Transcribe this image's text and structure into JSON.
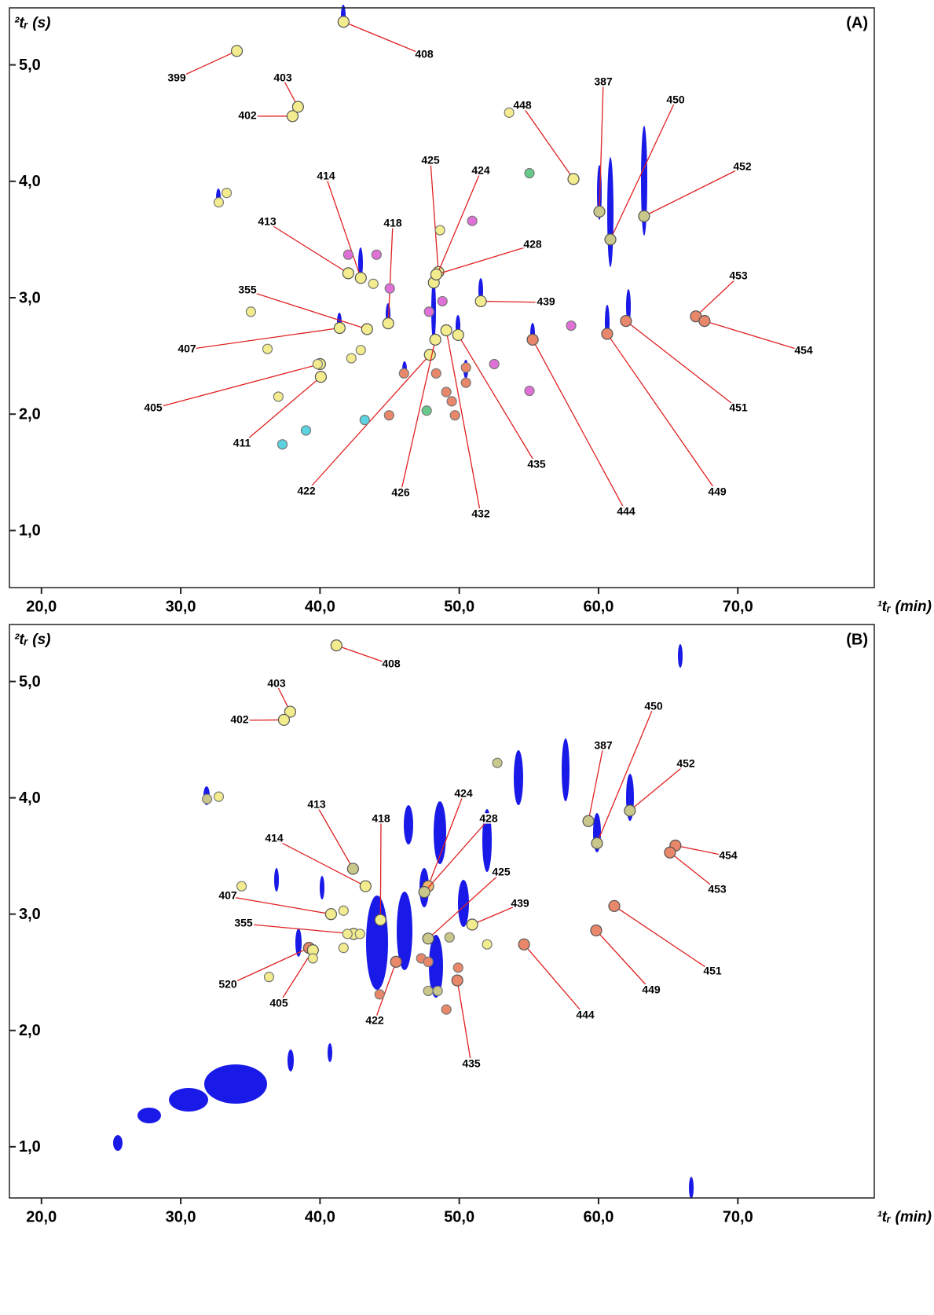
{
  "chart_data": [
    {
      "type": "scatter",
      "panel_label": "(A)",
      "x_label": "¹tᵣ (min)",
      "y_label": "²tᵣ (s)",
      "xlim": [
        17.7,
        79.8
      ],
      "ylim": [
        0.51,
        5.49
      ],
      "xticks": [
        {
          "value": 20,
          "label": "20,0"
        },
        {
          "value": 30,
          "label": "30,0"
        },
        {
          "value": 40,
          "label": "40,0"
        },
        {
          "value": 50,
          "label": "50,0"
        },
        {
          "value": 60,
          "label": "60,0"
        },
        {
          "value": 70,
          "label": "70,0"
        }
      ],
      "yticks": [
        {
          "value": 1,
          "label": "1,0"
        },
        {
          "value": 2,
          "label": "2,0"
        },
        {
          "value": 3,
          "label": "3,0"
        },
        {
          "value": 4,
          "label": "4,0"
        },
        {
          "value": 5,
          "label": "5,0"
        }
      ],
      "labels": [
        "408",
        "399",
        "403",
        "402",
        "448",
        "387",
        "450",
        "452",
        "414",
        "425",
        "424",
        "428",
        "413",
        "418",
        "355",
        "407",
        "439",
        "405",
        "411",
        "422",
        "426",
        "432",
        "435",
        "444",
        "449",
        "451",
        "453",
        "454",
        null,
        null,
        null,
        null,
        null,
        null,
        null,
        null,
        null,
        null,
        null,
        null,
        null,
        null,
        null,
        null,
        null,
        null,
        null,
        null,
        null,
        null,
        null,
        null,
        null,
        null,
        null,
        null,
        null,
        null,
        null,
        null,
        null
      ],
      "x": [
        41.69,
        34.03,
        38.42,
        38.03,
        58.2,
        60.06,
        60.85,
        63.27,
        42.93,
        48.5,
        48.17,
        48.35,
        42.03,
        44.9,
        43.38,
        41.41,
        51.55,
        40.0,
        40.06,
        47.89,
        48.28,
        49.07,
        49.92,
        55.27,
        60.62,
        61.97,
        66.99,
        67.61,
        32.73,
        33.3,
        35.04,
        36.23,
        37.01,
        39.83,
        42.25,
        42.93,
        43.83,
        53.58,
        48.62,
        42.03,
        44.06,
        45.01,
        50.93,
        48.79,
        47.83,
        52.51,
        58.03,
        55.04,
        44.96,
        49.07,
        49.46,
        49.69,
        48.34,
        50.48,
        50.48,
        46.03,
        55.04,
        47.66,
        43.21,
        38.99,
        37.3
      ],
      "y": [
        5.37,
        5.12,
        4.64,
        4.56,
        4.02,
        3.74,
        3.5,
        3.7,
        3.17,
        3.22,
        3.13,
        3.2,
        3.21,
        2.78,
        2.73,
        2.74,
        2.97,
        2.43,
        2.32,
        2.51,
        2.64,
        2.72,
        2.68,
        2.64,
        2.69,
        2.8,
        2.84,
        2.8,
        3.82,
        3.9,
        2.88,
        2.56,
        2.15,
        2.43,
        2.48,
        2.55,
        3.12,
        4.59,
        3.58,
        3.37,
        3.37,
        3.08,
        3.66,
        2.97,
        2.88,
        2.43,
        2.76,
        2.2,
        1.99,
        2.19,
        2.11,
        1.99,
        2.35,
        2.4,
        2.27,
        2.35,
        4.07,
        2.03,
        1.95,
        1.86,
        1.74
      ],
      "colors": [
        "#f2ec8e",
        "#f2ec8e",
        "#f2ec8e",
        "#f2ec8e",
        "#f2ec8e",
        "#c9c78a",
        "#c9c78a",
        "#c9c78a",
        "#f2ec8e",
        "#f2ec8e",
        "#f2ec8e",
        "#f2ec8e",
        "#f2ec8e",
        "#f2ec8e",
        "#f2ec8e",
        "#f2ec8e",
        "#f2ec8e",
        "#f2ec8e",
        "#f2ec8e",
        "#f2ec8e",
        "#f2ec8e",
        "#f2ec8e",
        "#f2ec8e",
        "#e8876a",
        "#e8876a",
        "#e8876a",
        "#e8876a",
        "#e8876a",
        "#f2ec8e",
        "#f2ec8e",
        "#f2ec8e",
        "#f2ec8e",
        "#f2ec8e",
        "#f2ec8e",
        "#f2ec8e",
        "#f2ec8e",
        "#f2ec8e",
        "#f2ec8e",
        "#f2ec8e",
        "#e070d8",
        "#e070d8",
        "#e070d8",
        "#e070d8",
        "#e070d8",
        "#e070d8",
        "#e070d8",
        "#e070d8",
        "#e070d8",
        "#e8876a",
        "#e8876a",
        "#e8876a",
        "#e8876a",
        "#e8876a",
        "#e8876a",
        "#e8876a",
        "#e8876a",
        "#66c98a",
        "#66c98a",
        "#5cd3e0",
        "#5cd3e0",
        "#5cd3e0"
      ]
    },
    {
      "type": "scatter",
      "panel_label": "(B)",
      "x_label": "¹tᵣ (min)",
      "y_label": "²tᵣ (s)",
      "xlim": [
        17.7,
        79.8
      ],
      "ylim": [
        0.56,
        5.49
      ],
      "xticks": [
        {
          "value": 20,
          "label": "20,0"
        },
        {
          "value": 30,
          "label": "30,0"
        },
        {
          "value": 40,
          "label": "40,0"
        },
        {
          "value": 50,
          "label": "50,0"
        },
        {
          "value": 60,
          "label": "60,0"
        },
        {
          "value": 70,
          "label": "70,0"
        }
      ],
      "yticks": [
        {
          "value": 1,
          "label": "1,0"
        },
        {
          "value": 2,
          "label": "2,0"
        },
        {
          "value": 3,
          "label": "3,0"
        },
        {
          "value": 4,
          "label": "4,0"
        },
        {
          "value": 5,
          "label": "5,0"
        }
      ],
      "labels": [
        "408",
        "403",
        "402",
        "387",
        "450",
        "452",
        "454",
        "453",
        "413",
        "418",
        "424",
        "428",
        "414",
        "425",
        "439",
        "407",
        "355",
        "520",
        "405",
        "422",
        "435",
        "444",
        "449",
        "451",
        null,
        null,
        null,
        null,
        null,
        null,
        null,
        null,
        null,
        null,
        null,
        null,
        null,
        null,
        null,
        null,
        null,
        null,
        null
      ],
      "x": [
        41.18,
        37.86,
        37.41,
        59.27,
        59.89,
        62.25,
        65.52,
        65.13,
        42.37,
        44.34,
        47.77,
        47.49,
        43.27,
        47.77,
        50.93,
        40.79,
        42.42,
        39.21,
        39.49,
        45.46,
        49.86,
        54.65,
        59.83,
        61.13,
        31.89,
        32.73,
        34.37,
        41.69,
        41.69,
        39.49,
        36.34,
        52.73,
        52.0,
        49.3,
        47.77,
        48.45,
        42.87,
        41.97,
        44.28,
        47.27,
        47.77,
        49.92,
        49.07
      ],
      "y": [
        5.31,
        4.74,
        4.67,
        3.8,
        3.61,
        3.89,
        3.59,
        3.53,
        3.39,
        2.95,
        3.24,
        3.19,
        3.24,
        2.79,
        2.91,
        3.0,
        2.83,
        2.71,
        2.69,
        2.59,
        2.43,
        2.74,
        2.86,
        3.07,
        3.99,
        4.01,
        3.24,
        3.03,
        2.71,
        2.62,
        2.46,
        4.3,
        2.74,
        2.8,
        2.34,
        2.34,
        2.83,
        2.83,
        2.31,
        2.62,
        2.59,
        2.54,
        2.18
      ],
      "colors": [
        "#f2ec8e",
        "#f2ec8e",
        "#f2ec8e",
        "#c9c78a",
        "#c9c78a",
        "#c9c78a",
        "#e8876a",
        "#e8876a",
        "#c9c78a",
        "#f2ec8e",
        "#f0b66e",
        "#c9c78a",
        "#f2ec8e",
        "#c9c78a",
        "#f2ec8e",
        "#f2ec8e",
        "#f2ec8e",
        "#e8876a",
        "#f2ec8e",
        "#e8876a",
        "#e8876a",
        "#e8876a",
        "#e8876a",
        "#e8876a",
        "#c9c78a",
        "#f2ec8e",
        "#f2ec8e",
        "#f2ec8e",
        "#f2ec8e",
        "#f2ec8e",
        "#f2ec8e",
        "#c9c78a",
        "#f2ec8e",
        "#c9c78a",
        "#c9c78a",
        "#c9c78a",
        "#f2ec8e",
        "#f2ec8e",
        "#e8876a",
        "#e8876a",
        "#e8876a",
        "#e8876a",
        "#e8876a"
      ]
    }
  ]
}
